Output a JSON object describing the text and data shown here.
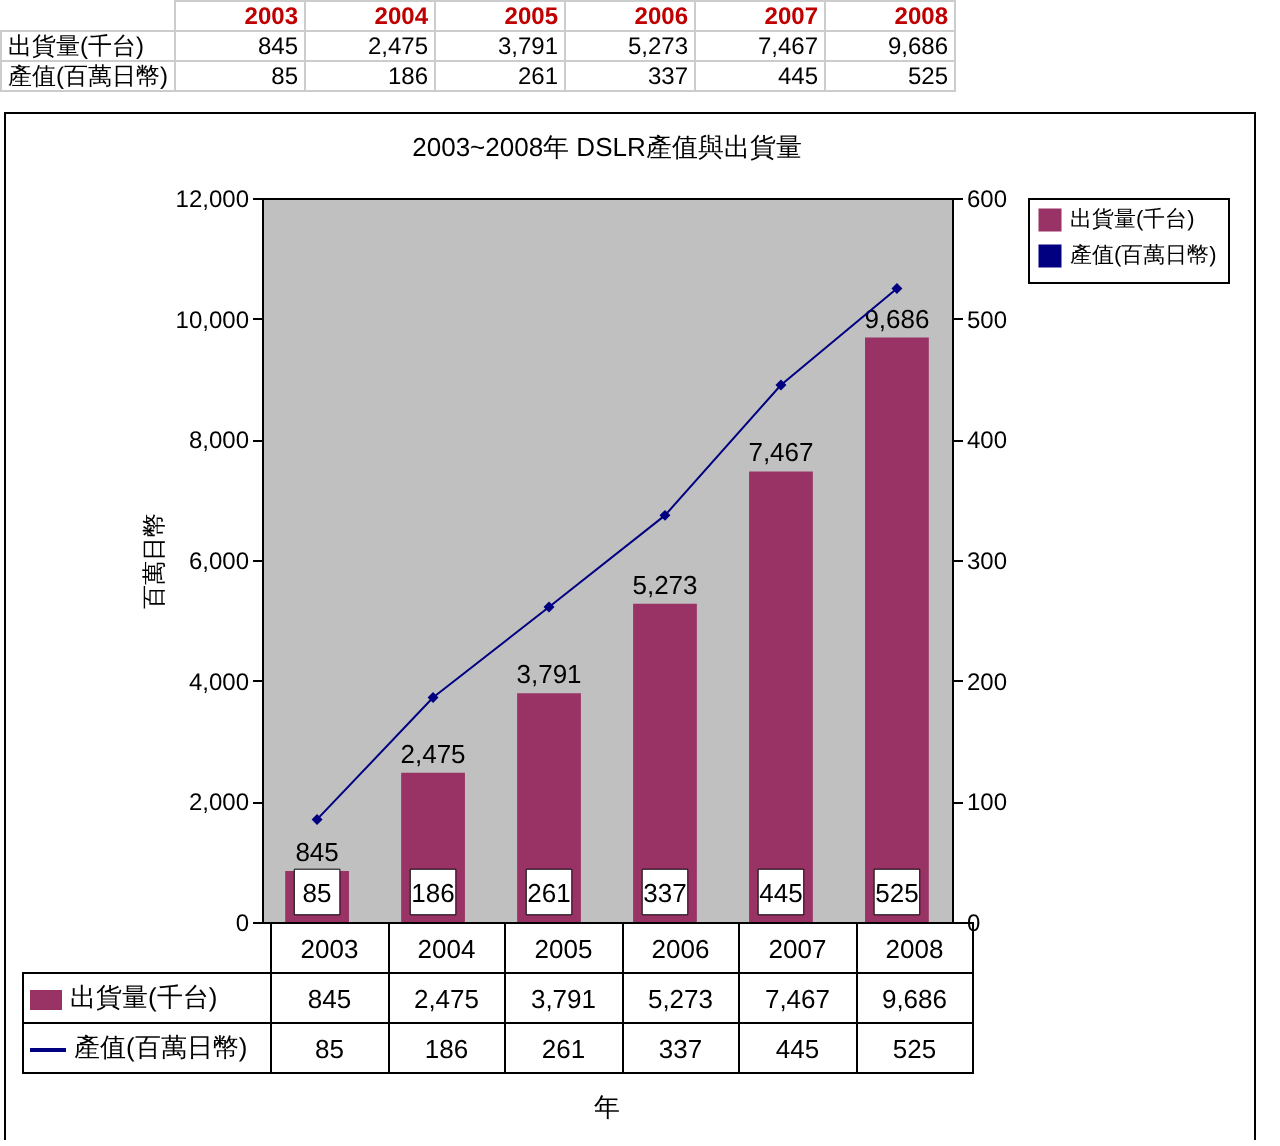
{
  "chart_data": {
    "type": "bar",
    "title": "2003~2008年 DSLR產值與出貨量",
    "categories": [
      "2003",
      "2004",
      "2005",
      "2006",
      "2007",
      "2008"
    ],
    "series": [
      {
        "name": "出貨量(千台)",
        "color": "#993366",
        "values": [
          845,
          2475,
          3791,
          5273,
          7467,
          9686
        ],
        "value_labels": [
          "845",
          "2,475",
          "3,791",
          "5,273",
          "7,467",
          "9,686"
        ]
      },
      {
        "name": "產值(百萬日幣)",
        "type": "line",
        "axis": "y2",
        "color": "#000080",
        "values": [
          85,
          186,
          261,
          337,
          445,
          525
        ],
        "value_labels": [
          "85",
          "186",
          "261",
          "337",
          "445",
          "525"
        ]
      }
    ],
    "ylabel": "百萬日幣",
    "xlabel": "年",
    "ylim": [
      0,
      12000
    ],
    "yticks": [
      0,
      {
        "value": 2000,
        "label": "2,000"
      },
      {
        "value": 4000,
        "label": "4,000"
      },
      {
        "value": 6000,
        "label": "6,000"
      },
      {
        "value": 8000,
        "label": "8,000"
      },
      {
        "value": 10000,
        "label": "10,000"
      },
      {
        "value": 12000,
        "label": "12,000"
      }
    ],
    "y2lim": [
      0,
      600
    ],
    "y2ticks": [
      0,
      100,
      200,
      300,
      400,
      500,
      600
    ],
    "legend": "right",
    "marker": "diamond"
  }
}
